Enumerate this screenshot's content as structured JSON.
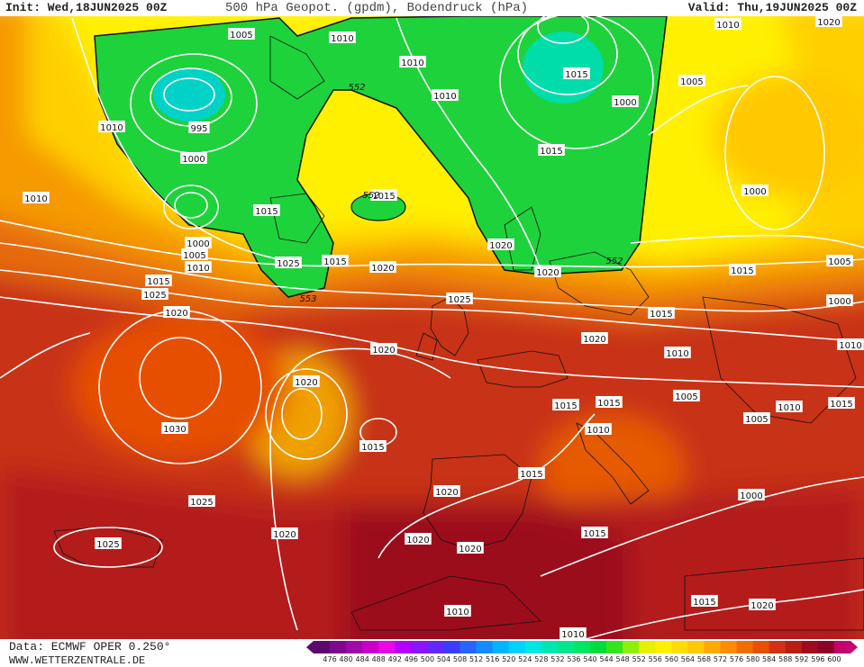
{
  "header": {
    "init": "Init: Wed,18JUN2025 00Z",
    "title": "500 hPa Geopot. (gpdm), Bodendruck (hPa)",
    "valid": "Valid: Thu,19JUN2025 00Z"
  },
  "footer": {
    "source": "Data: ECMWF OPER 0.250°",
    "website": "WWW.WETTERZENTRALE.DE"
  },
  "colorbar": {
    "ticks": [
      "476",
      "480",
      "484",
      "488",
      "492",
      "496",
      "500",
      "504",
      "508",
      "512",
      "516",
      "520",
      "524",
      "528",
      "532",
      "536",
      "540",
      "544",
      "548",
      "552",
      "556",
      "560",
      "564",
      "568",
      "572",
      "576",
      "580",
      "584",
      "588",
      "592",
      "596",
      "600"
    ],
    "colors": [
      "#5a0a6e",
      "#7d0a8c",
      "#a00aa8",
      "#c800c8",
      "#e60ae6",
      "#b400ff",
      "#8c14ff",
      "#6428ff",
      "#3c3cff",
      "#2864ff",
      "#148cff",
      "#00b4ff",
      "#00d2ff",
      "#00e6e6",
      "#00e6b4",
      "#00e68c",
      "#00e664",
      "#00dc3c",
      "#32e61e",
      "#8cf00a",
      "#e6f000",
      "#fff000",
      "#ffdc00",
      "#ffc800",
      "#ffaa00",
      "#ff8c00",
      "#f06e00",
      "#e65000",
      "#d23214",
      "#b91e14",
      "#a00a1e",
      "#8c0028",
      "#c8006e"
    ]
  },
  "map_labels": {
    "pressure": [
      "1005",
      "1010",
      "1010",
      "995",
      "1000",
      "1010",
      "1010",
      "1000",
      "1005",
      "1010",
      "1015",
      "1025",
      "1020",
      "1025",
      "1030",
      "1025",
      "1025",
      "1020",
      "1020",
      "1015",
      "1015",
      "1015",
      "1020",
      "1020",
      "1020",
      "1020",
      "1020",
      "1015",
      "1010",
      "1010",
      "1015",
      "1020",
      "1000",
      "1005",
      "1010",
      "1015",
      "1015",
      "1010",
      "1020",
      "1020",
      "1020",
      "1015",
      "1015",
      "1010",
      "1015",
      "1015",
      "1010",
      "1005",
      "1000",
      "1005",
      "1000",
      "1005",
      "1010",
      "1010",
      "1015",
      "1015",
      "1015",
      "1025",
      "1020",
      "1000"
    ],
    "geopotential": [
      "552",
      "552",
      "552",
      "553"
    ]
  }
}
